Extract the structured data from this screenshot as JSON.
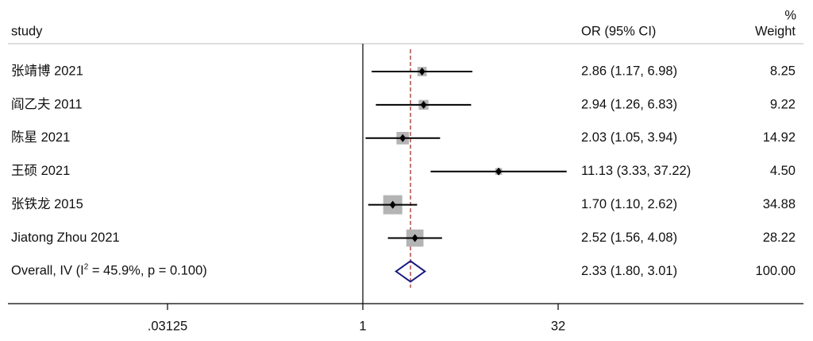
{
  "chart_data": {
    "type": "forest",
    "headers": {
      "study": "study",
      "ci": "OR (95% CI)",
      "weight_top": "%",
      "weight": "Weight"
    },
    "categories": [
      "张靖博 2021",
      "阎乙夫 2011",
      "陈星 2021",
      "王硕 2021",
      "张铁龙 2015",
      "Jiatong Zhou 2021"
    ],
    "values": [
      2.86,
      2.94,
      2.03,
      11.13,
      1.7,
      2.52
    ],
    "lower": [
      1.17,
      1.26,
      1.05,
      3.33,
      1.1,
      1.56
    ],
    "upper": [
      6.98,
      6.83,
      3.94,
      37.22,
      2.62,
      4.08
    ],
    "ci_labels": [
      "2.86 (1.17, 6.98)",
      "2.94 (1.26, 6.83)",
      "2.03 (1.05, 3.94)",
      "11.13 (3.33, 37.22)",
      "1.70 (1.10, 2.62)",
      "2.52 (1.56, 4.08)"
    ],
    "weights": [
      8.25,
      9.22,
      14.92,
      4.5,
      34.88,
      28.22
    ],
    "weight_labels": [
      "8.25",
      "9.22",
      "14.92",
      "4.50",
      "34.88",
      "28.22"
    ],
    "overall": {
      "label": [
        "Overall, IV (I",
        "2",
        " = 45.9%, p = 0.100)"
      ],
      "value": 2.33,
      "lower": 1.8,
      "upper": 3.01,
      "ci_label": "2.33 (1.80, 3.01)",
      "weight": 100,
      "weight_label": "100.00"
    },
    "xscale": "log",
    "xlim": [
      0.03125,
      32
    ],
    "xticks": [
      {
        "value": 0.03125,
        "label": ".03125"
      },
      1,
      32
    ],
    "square_color": "#b4b4b4",
    "ci_color": "#000000",
    "diamond_color": "#1a1a80",
    "ref_line_color": "#a0302a"
  }
}
